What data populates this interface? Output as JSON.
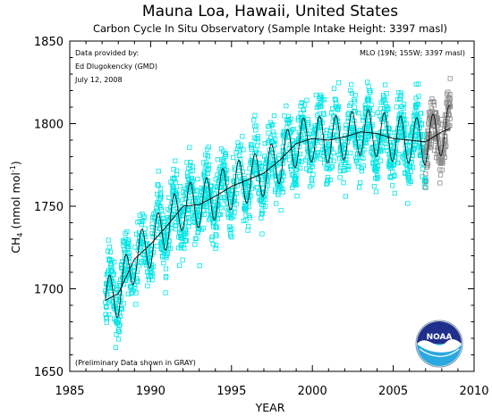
{
  "chart_data": {
    "type": "scatter",
    "title": "Mauna Loa, Hawaii, United States",
    "subtitle": "Carbon Cycle In Situ Observatory (Sample Intake Height: 3397 masl)",
    "xlabel": "YEAR",
    "ylabel_main": "CH",
    "ylabel_sub": "4",
    "ylabel_unit_pre": "(nmol mol",
    "ylabel_unit_sup": "-1",
    "ylabel_unit_post": ")",
    "xlim": [
      1985,
      2010
    ],
    "ylim": [
      1650,
      1850
    ],
    "x_ticks": [
      1985,
      1990,
      1995,
      2000,
      2005,
      2010
    ],
    "y_ticks": [
      1650,
      1700,
      1750,
      1800,
      1850
    ],
    "grid": false,
    "annotations": {
      "provider_line1": "Data provided by:",
      "provider_line2": "Ed Dlugokencky (GMD)",
      "provider_line3": "July 12, 2008",
      "station": "MLO (19N; 155W; 3397 masl)",
      "preliminary_note": "(Preliminary Data shown in GRAY)"
    },
    "logo_text": "NOAA",
    "series": [
      {
        "role": "final data",
        "marker": "open square",
        "color": "#00e5e5",
        "x_range": [
          1987.2,
          2007.0
        ],
        "approx_trend": [
          [
            1987.2,
            1693
          ],
          [
            1988,
            1697
          ],
          [
            1989,
            1718
          ],
          [
            1990,
            1727
          ],
          [
            1991,
            1738
          ],
          [
            1992,
            1750
          ],
          [
            1993,
            1751
          ],
          [
            1994,
            1756
          ],
          [
            1995,
            1762
          ],
          [
            1996,
            1766
          ],
          [
            1997,
            1770
          ],
          [
            1998,
            1778
          ],
          [
            1999,
            1788
          ],
          [
            2000,
            1791
          ],
          [
            2001,
            1790
          ],
          [
            2002,
            1792
          ],
          [
            2003,
            1795
          ],
          [
            2004,
            1794
          ],
          [
            2005,
            1791
          ],
          [
            2006,
            1790
          ],
          [
            2007,
            1789
          ]
        ],
        "approx_spread": 18
      },
      {
        "role": "preliminary data",
        "marker": "open square",
        "color": "#8c8c8c",
        "x_range": [
          2007.0,
          2008.55
        ],
        "approx_trend": [
          [
            2007.0,
            1789
          ],
          [
            2007.5,
            1792
          ],
          [
            2008.0,
            1795
          ],
          [
            2008.55,
            1797
          ]
        ],
        "approx_spread": 14
      },
      {
        "role": "trend line",
        "marker": "line",
        "color": "#000000",
        "points": [
          [
            1987.2,
            1693
          ],
          [
            1988,
            1697
          ],
          [
            1989,
            1718
          ],
          [
            1990,
            1727
          ],
          [
            1991,
            1738
          ],
          [
            1992,
            1750
          ],
          [
            1993,
            1751
          ],
          [
            1994,
            1756
          ],
          [
            1995,
            1762
          ],
          [
            1996,
            1766
          ],
          [
            1997,
            1770
          ],
          [
            1998,
            1778
          ],
          [
            1999,
            1788
          ],
          [
            2000,
            1791
          ],
          [
            2001,
            1790
          ],
          [
            2002,
            1792
          ],
          [
            2003,
            1795
          ],
          [
            2004,
            1794
          ],
          [
            2005,
            1791
          ],
          [
            2006,
            1790
          ],
          [
            2007,
            1789
          ],
          [
            2008,
            1795
          ],
          [
            2008.5,
            1797
          ]
        ]
      }
    ],
    "seasonal_amplitude": 14
  }
}
